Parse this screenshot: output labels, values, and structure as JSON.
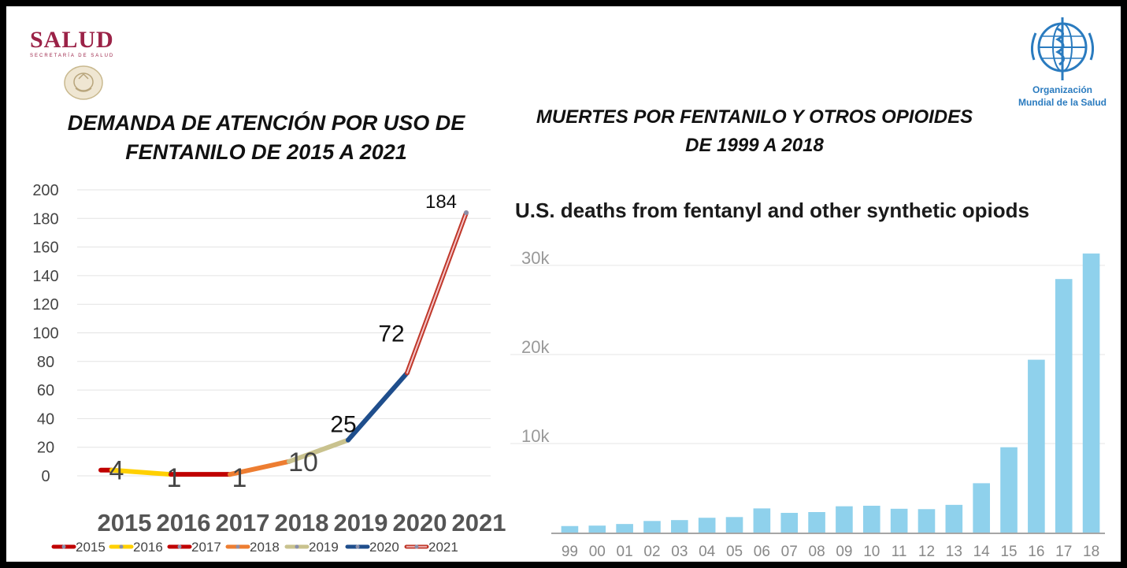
{
  "header": {
    "salud_logo": "SALUD",
    "salud_subtitle": "SECRETARÍA DE SALUD",
    "oms_name_line1": "Organización",
    "oms_name_line2": "Mundial de la Salud"
  },
  "chart_data": [
    {
      "type": "line",
      "title_line1": "DEMANDA DE ATENCIÓN POR USO DE",
      "title_line2": "FENTANILO DE 2015 A 2021",
      "categories": [
        "2015",
        "2016",
        "2017",
        "2018",
        "2019",
        "2020",
        "2021"
      ],
      "values": [
        4,
        1,
        1,
        10,
        25,
        72,
        184
      ],
      "value_labels": [
        "4",
        "1",
        "1",
        "10",
        "25",
        "72",
        "184"
      ],
      "ylim": [
        0,
        200
      ],
      "y_ticks": [
        "0",
        "20",
        "40",
        "60",
        "80",
        "100",
        "120",
        "140",
        "160",
        "180",
        "200"
      ],
      "grid": true,
      "legend_position": "bottom",
      "segments": [
        {
          "name": "2015",
          "color": "#c00000"
        },
        {
          "name": "2016",
          "color": "#ffd000"
        },
        {
          "name": "2017",
          "color": "#c00000"
        },
        {
          "name": "2018",
          "color": "#ed7d31"
        },
        {
          "name": "2019",
          "color": "#c9c28e"
        },
        {
          "name": "2020",
          "color": "#1f4e8c"
        },
        {
          "name": "2021",
          "color": "#e06070"
        }
      ]
    },
    {
      "type": "bar",
      "title_line1": "MUERTES POR FENTANILO Y OTROS OPIOIDES",
      "title_line2": "DE 1999 A 2018",
      "subtitle": "U.S. deaths from fentanyl and other synthetic opiods",
      "categories": [
        "99",
        "00",
        "01",
        "02",
        "03",
        "04",
        "05",
        "06",
        "07",
        "08",
        "09",
        "10",
        "11",
        "12",
        "13",
        "14",
        "15",
        "16",
        "17",
        "18"
      ],
      "values": [
        730,
        780,
        960,
        1300,
        1400,
        1660,
        1740,
        2710,
        2210,
        2300,
        2950,
        3010,
        2670,
        2630,
        3110,
        5540,
        9580,
        19410,
        28470,
        31340
      ],
      "ylim": [
        0,
        33000
      ],
      "y_ticks": [
        {
          "value": 10000,
          "label": "10k"
        },
        {
          "value": 20000,
          "label": "20k"
        },
        {
          "value": 30000,
          "label": "30k"
        }
      ],
      "grid": true,
      "bar_color": "#8fd1ec"
    }
  ]
}
